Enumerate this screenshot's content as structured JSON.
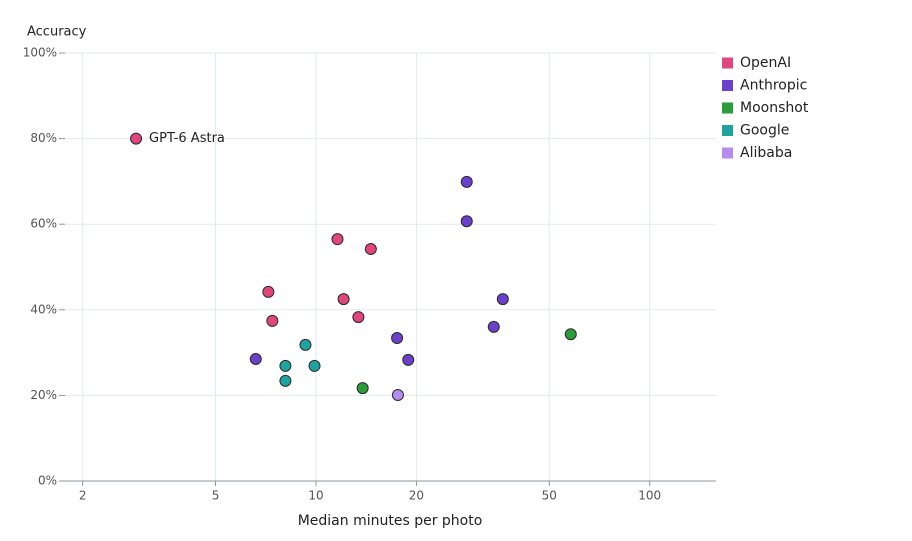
{
  "chart_data": {
    "type": "scatter",
    "y_label": "Accuracy",
    "x_label": "Median minutes per photo",
    "xscale": "log",
    "grid": true,
    "legend": "right",
    "xlim": [
      1.77,
      158
    ],
    "ylim": [
      0,
      100
    ],
    "xticks": [
      2,
      5,
      10,
      20,
      50,
      100
    ],
    "yticks": [
      {
        "value": 0,
        "label": "0%"
      },
      {
        "value": 20,
        "label": "20%"
      },
      {
        "value": 40,
        "label": "40%"
      },
      {
        "value": 60,
        "label": "60%"
      },
      {
        "value": 80,
        "label": "80%"
      },
      {
        "value": 100,
        "label": "100%"
      }
    ],
    "series": [
      {
        "name": "OpenAI",
        "color": "#e0457b",
        "x": [
          2.89,
          11.6,
          14.6,
          7.2,
          12.1,
          7.4,
          13.4
        ],
        "values": [
          80,
          56.5,
          54.2,
          44.2,
          42.5,
          37.4,
          38.3
        ],
        "labels": [
          "GPT-6 Astra",
          null,
          null,
          null,
          null,
          null,
          null
        ]
      },
      {
        "name": "Anthropic",
        "color": "#6a40cc",
        "x": [
          28.3,
          28.3,
          36.3,
          34.1,
          17.5,
          18.9,
          6.6
        ],
        "values": [
          69.9,
          60.7,
          42.5,
          36.0,
          33.4,
          28.3,
          28.5
        ]
      },
      {
        "name": "Moonshot",
        "color": "#2a9d3a",
        "x": [
          58,
          13.8
        ],
        "values": [
          34.3,
          21.7
        ]
      },
      {
        "name": "Google",
        "color": "#1fa3a0",
        "x": [
          9.3,
          8.1,
          9.9,
          8.1
        ],
        "values": [
          31.8,
          26.9,
          26.9,
          23.4
        ]
      },
      {
        "name": "Alibaba",
        "color": "#b58cf0",
        "x": [
          17.6
        ],
        "values": [
          20.1
        ]
      }
    ]
  }
}
